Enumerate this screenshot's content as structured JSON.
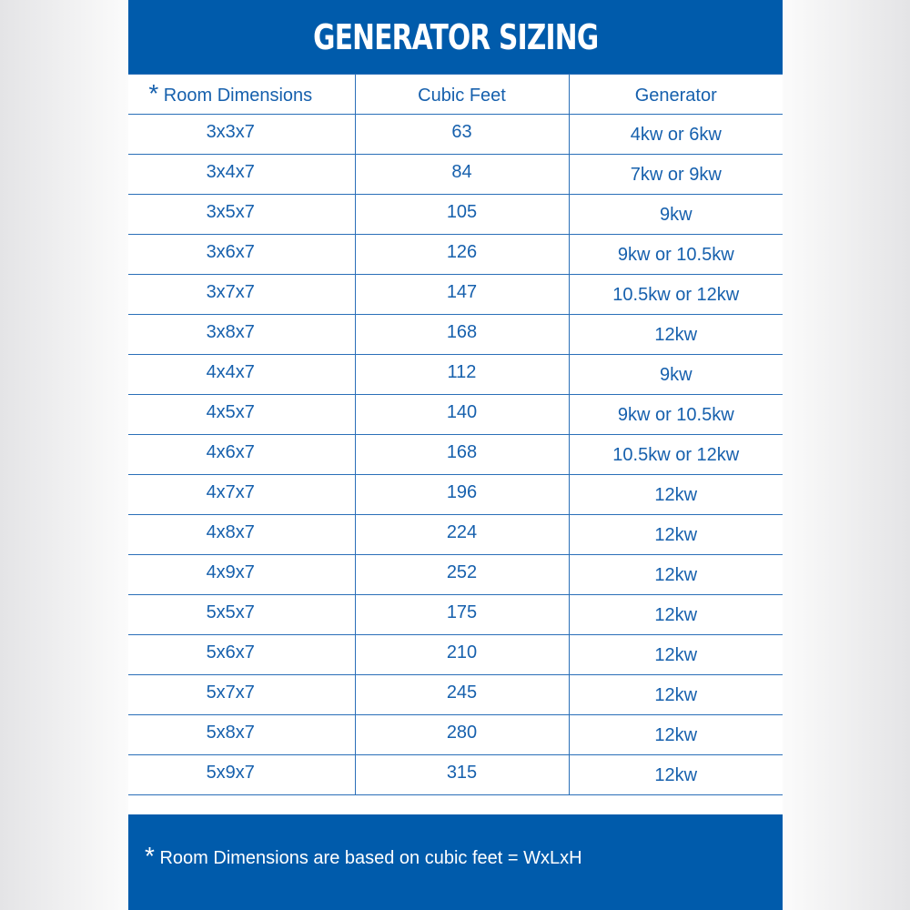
{
  "title": "GENERATOR SIZING",
  "colors": {
    "brand_blue": "#005bab",
    "text_blue": "#1660ad"
  },
  "columns": {
    "dimensions": "Room Dimensions",
    "dimensions_marker": "*",
    "cubic_feet": "Cubic Feet",
    "generator": "Generator"
  },
  "rows": [
    {
      "dim": "3x3x7",
      "cf": "63",
      "gen": "4kw or 6kw"
    },
    {
      "dim": "3x4x7",
      "cf": "84",
      "gen": "7kw or 9kw"
    },
    {
      "dim": "3x5x7",
      "cf": "105",
      "gen": "9kw"
    },
    {
      "dim": "3x6x7",
      "cf": "126",
      "gen": "9kw or 10.5kw"
    },
    {
      "dim": "3x7x7",
      "cf": "147",
      "gen": "10.5kw or 12kw"
    },
    {
      "dim": "3x8x7",
      "cf": "168",
      "gen": "12kw"
    },
    {
      "dim": "4x4x7",
      "cf": "112",
      "gen": "9kw"
    },
    {
      "dim": "4x5x7",
      "cf": "140",
      "gen": "9kw or 10.5kw"
    },
    {
      "dim": "4x6x7",
      "cf": "168",
      "gen": "10.5kw or 12kw"
    },
    {
      "dim": "4x7x7",
      "cf": "196",
      "gen": "12kw"
    },
    {
      "dim": "4x8x7",
      "cf": "224",
      "gen": "12kw"
    },
    {
      "dim": "4x9x7",
      "cf": "252",
      "gen": "12kw"
    },
    {
      "dim": "5x5x7",
      "cf": "175",
      "gen": "12kw"
    },
    {
      "dim": "5x6x7",
      "cf": "210",
      "gen": "12kw"
    },
    {
      "dim": "5x7x7",
      "cf": "245",
      "gen": "12kw"
    },
    {
      "dim": "5x8x7",
      "cf": "280",
      "gen": "12kw"
    },
    {
      "dim": "5x9x7",
      "cf": "315",
      "gen": "12kw"
    }
  ],
  "footer": {
    "marker": "*",
    "note": "Room Dimensions are based on cubic feet = WxLxH"
  }
}
